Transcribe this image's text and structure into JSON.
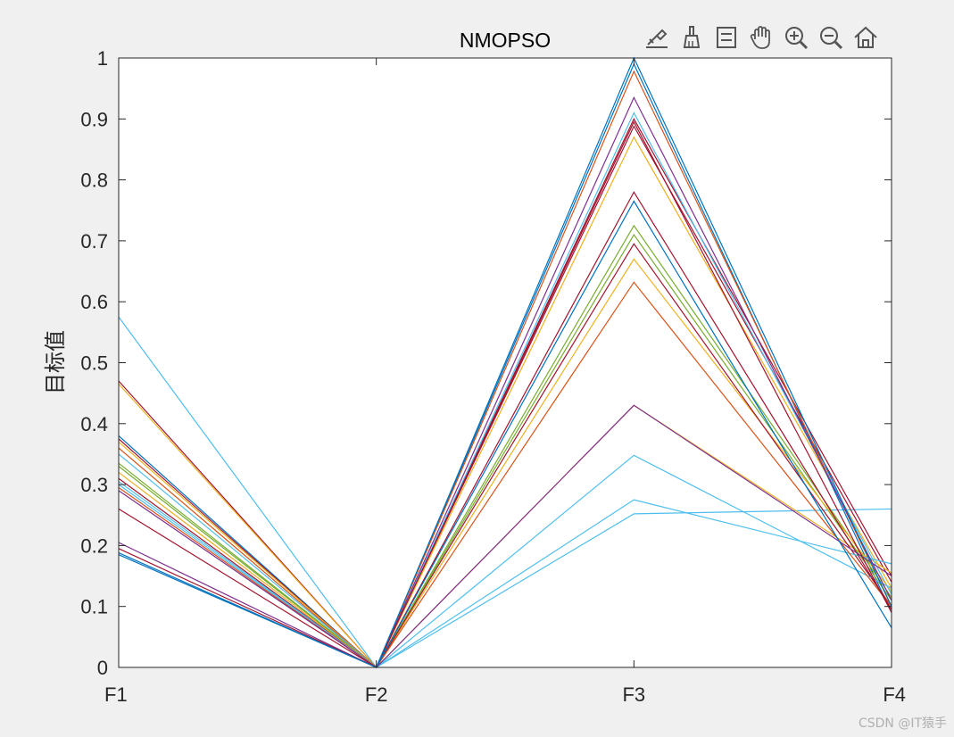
{
  "toolbar": {
    "tools": [
      {
        "name": "data-tips-icon"
      },
      {
        "name": "brush-icon"
      },
      {
        "name": "legend-toggle-icon"
      },
      {
        "name": "pan-hand-icon"
      },
      {
        "name": "zoom-in-icon"
      },
      {
        "name": "zoom-out-icon"
      },
      {
        "name": "home-icon"
      }
    ]
  },
  "watermark": "CSDN @IT猿手",
  "chart_data": {
    "type": "line",
    "title": "NMOPSO",
    "ylabel": "目标值",
    "xlabel": "",
    "categories": [
      "F1",
      "F2",
      "F3",
      "F4"
    ],
    "ylim": [
      0,
      1
    ],
    "yticks": [
      0,
      0.1,
      0.2,
      0.3,
      0.4,
      0.5,
      0.6,
      0.7,
      0.8,
      0.9,
      1
    ],
    "ytick_labels": [
      "0",
      "0.1",
      "0.2",
      "0.3",
      "0.4",
      "0.5",
      "0.6",
      "0.7",
      "0.8",
      "0.9",
      "1"
    ],
    "grid": false,
    "series": [
      {
        "values": [
          0.575,
          0.0,
          0.252,
          0.26
        ],
        "color": "#4DBEEE"
      },
      {
        "values": [
          0.47,
          0.0,
          0.888,
          0.14
        ],
        "color": "#A2142F"
      },
      {
        "values": [
          0.465,
          0.0,
          0.87,
          0.13
        ],
        "color": "#EDB120"
      },
      {
        "values": [
          0.38,
          0.0,
          0.99,
          0.09
        ],
        "color": "#0072BD"
      },
      {
        "values": [
          0.375,
          0.0,
          0.9,
          0.15
        ],
        "color": "#A2142F"
      },
      {
        "values": [
          0.37,
          0.0,
          0.43,
          0.155
        ],
        "color": "#EDB120"
      },
      {
        "values": [
          0.36,
          0.0,
          0.978,
          0.1
        ],
        "color": "#D95319"
      },
      {
        "values": [
          0.35,
          0.0,
          0.91,
          0.12
        ],
        "color": "#4DBEEE"
      },
      {
        "values": [
          0.335,
          0.0,
          0.725,
          0.115
        ],
        "color": "#77AC30"
      },
      {
        "values": [
          0.33,
          0.0,
          0.71,
          0.11
        ],
        "color": "#77AC30"
      },
      {
        "values": [
          0.32,
          0.0,
          0.67,
          0.125
        ],
        "color": "#EDB120"
      },
      {
        "values": [
          0.31,
          0.0,
          0.695,
          0.1
        ],
        "color": "#A2142F"
      },
      {
        "values": [
          0.305,
          0.0,
          0.348,
          0.13
        ],
        "color": "#4DBEEE"
      },
      {
        "values": [
          0.3,
          0.0,
          0.275,
          0.17
        ],
        "color": "#4DBEEE"
      },
      {
        "values": [
          0.295,
          0.0,
          0.632,
          0.1
        ],
        "color": "#D95319"
      },
      {
        "values": [
          0.29,
          0.0,
          0.935,
          0.11
        ],
        "color": "#7E2F8E"
      },
      {
        "values": [
          0.26,
          0.0,
          0.78,
          0.095
        ],
        "color": "#A2142F"
      },
      {
        "values": [
          0.205,
          0.0,
          0.43,
          0.15
        ],
        "color": "#7E2F8E"
      },
      {
        "values": [
          0.195,
          0.0,
          0.895,
          0.09
        ],
        "color": "#A2142F"
      },
      {
        "values": [
          0.188,
          0.0,
          0.765,
          0.065
        ],
        "color": "#0072BD"
      },
      {
        "values": [
          0.185,
          0.0,
          1.0,
          0.1
        ],
        "color": "#0072BD"
      }
    ]
  }
}
